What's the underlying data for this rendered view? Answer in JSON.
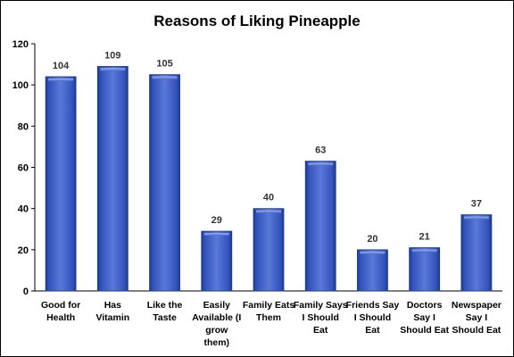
{
  "chart_data": {
    "type": "bar",
    "title": "Reasons of Liking Pineapple",
    "categories": [
      [
        "Good for",
        "Health"
      ],
      [
        "Has",
        "Vitamin"
      ],
      [
        "Like the",
        "Taste"
      ],
      [
        "Easily",
        "Available (I",
        "grow",
        "them)"
      ],
      [
        "Family Eats",
        "Them"
      ],
      [
        "Family Says",
        "I Should",
        "Eat"
      ],
      [
        "Friends Say",
        "I Should",
        "Eat"
      ],
      [
        "Doctors",
        "Say I",
        "Should Eat"
      ],
      [
        "Newspaper",
        "Say I",
        "Should Eat"
      ]
    ],
    "values": [
      104,
      109,
      105,
      29,
      40,
      63,
      20,
      21,
      37
    ],
    "yticks": [
      "0",
      "20",
      "40",
      "60",
      "80",
      "100",
      "120"
    ],
    "ylim": [
      0,
      120
    ],
    "grid": false,
    "legend": "none",
    "xlabel": "",
    "ylabel": "",
    "colors": {
      "bar_top": "#7f98e6",
      "bar_mid": "#4a69cf",
      "bar_edge": "#1e3a8f",
      "bar_face": "#3c5cc4",
      "axis": "#000000"
    }
  }
}
